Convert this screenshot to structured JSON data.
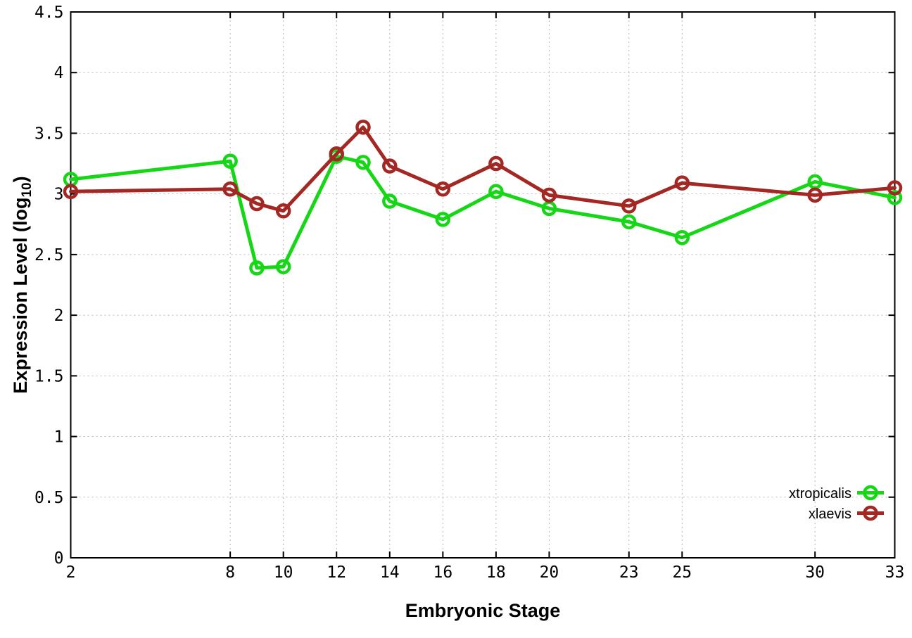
{
  "chart_data": {
    "type": "line",
    "title": "",
    "xlabel": "Embryonic Stage",
    "ylabel": {
      "text": "Expression Level (log10)",
      "base": "Expression Level (log",
      "sub": "10",
      "close": ")"
    },
    "xlim": [
      2,
      33
    ],
    "ylim": [
      0,
      4.5
    ],
    "xticks": [
      2,
      8,
      10,
      12,
      14,
      16,
      18,
      20,
      23,
      25,
      30,
      33
    ],
    "yticks": [
      0,
      0.5,
      1,
      1.5,
      2,
      2.5,
      3,
      3.5,
      4,
      4.5
    ],
    "grid": true,
    "grid_color": "#b5b5b5",
    "axis_color": "#000000",
    "legend_position": "bottom-right",
    "marker": "open-circle",
    "x": [
      2,
      8,
      9,
      10,
      12,
      13,
      14,
      16,
      18,
      20,
      23,
      25,
      30,
      33
    ],
    "series": [
      {
        "name": "xtropicalis",
        "color": "#16d716",
        "values": [
          3.12,
          3.27,
          2.39,
          2.4,
          3.31,
          3.26,
          2.94,
          2.79,
          3.02,
          2.88,
          2.77,
          2.64,
          3.1,
          2.97
        ]
      },
      {
        "name": "xlaevis",
        "color": "#a32723",
        "values": [
          3.02,
          3.04,
          2.92,
          2.86,
          3.33,
          3.55,
          3.23,
          3.04,
          3.25,
          2.99,
          2.9,
          3.09,
          2.99,
          3.05
        ]
      }
    ]
  }
}
